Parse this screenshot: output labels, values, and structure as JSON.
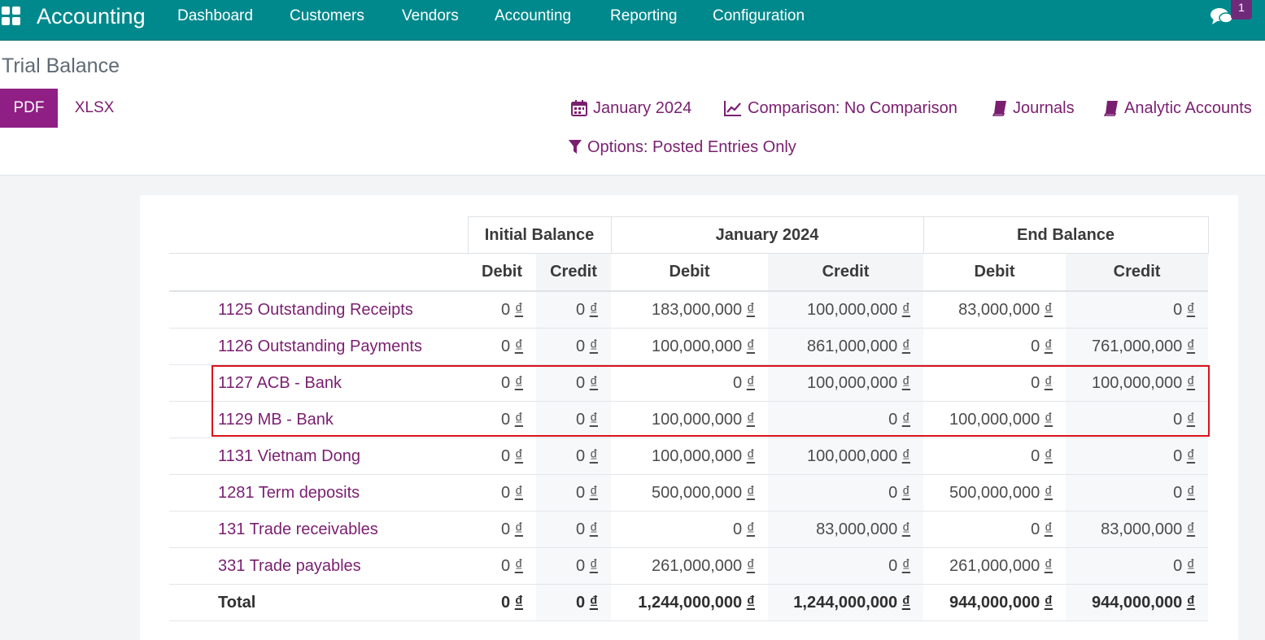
{
  "navbar": {
    "brand": "Accounting",
    "menu": [
      "Dashboard",
      "Customers",
      "Vendors",
      "Accounting",
      "Reporting",
      "Configuration"
    ],
    "message_count": "1",
    "icons": {
      "apps": "apps-grid-icon",
      "chat": "chat-icon"
    }
  },
  "control_panel": {
    "title": "Trial Balance",
    "pdf_label": "PDF",
    "xlsx_label": "XLSX",
    "filters": {
      "date": "January 2024",
      "comparison": "Comparison: No Comparison",
      "journals": "Journals",
      "analytic": "Analytic Accounts",
      "options": "Options: Posted Entries Only"
    }
  },
  "colors": {
    "navbar": "#00898c",
    "accent": "#8f1f84",
    "link": "#7a1f70",
    "highlight": "#d8121b"
  },
  "report": {
    "groups": [
      "Initial Balance",
      "January 2024",
      "End Balance"
    ],
    "subheaders": [
      "Debit",
      "Credit",
      "Debit",
      "Credit",
      "Debit",
      "Credit"
    ],
    "rows": [
      {
        "account": "1125 Outstanding Receipts",
        "values": [
          "0 ₫",
          "0 ₫",
          "183,000,000 ₫",
          "100,000,000 ₫",
          "83,000,000 ₫",
          "0 ₫"
        ]
      },
      {
        "account": "1126 Outstanding Payments",
        "values": [
          "0 ₫",
          "0 ₫",
          "100,000,000 ₫",
          "861,000,000 ₫",
          "0 ₫",
          "761,000,000 ₫"
        ]
      },
      {
        "account": "1127 ACB - Bank",
        "values": [
          "0 ₫",
          "0 ₫",
          "0 ₫",
          "100,000,000 ₫",
          "0 ₫",
          "100,000,000 ₫"
        ]
      },
      {
        "account": "1129 MB - Bank",
        "values": [
          "0 ₫",
          "0 ₫",
          "100,000,000 ₫",
          "0 ₫",
          "100,000,000 ₫",
          "0 ₫"
        ]
      },
      {
        "account": "1131 Vietnam Dong",
        "values": [
          "0 ₫",
          "0 ₫",
          "100,000,000 ₫",
          "100,000,000 ₫",
          "0 ₫",
          "0 ₫"
        ]
      },
      {
        "account": "1281 Term deposits",
        "values": [
          "0 ₫",
          "0 ₫",
          "500,000,000 ₫",
          "0 ₫",
          "500,000,000 ₫",
          "0 ₫"
        ]
      },
      {
        "account": "131 Trade receivables",
        "values": [
          "0 ₫",
          "0 ₫",
          "0 ₫",
          "83,000,000 ₫",
          "0 ₫",
          "83,000,000 ₫"
        ]
      },
      {
        "account": "331 Trade payables",
        "values": [
          "0 ₫",
          "0 ₫",
          "261,000,000 ₫",
          "0 ₫",
          "261,000,000 ₫",
          "0 ₫"
        ]
      }
    ],
    "total": {
      "label": "Total",
      "values": [
        "0 ₫",
        "0 ₫",
        "1,244,000,000 ₫",
        "1,244,000,000 ₫",
        "944,000,000 ₫",
        "944,000,000 ₫"
      ]
    }
  }
}
